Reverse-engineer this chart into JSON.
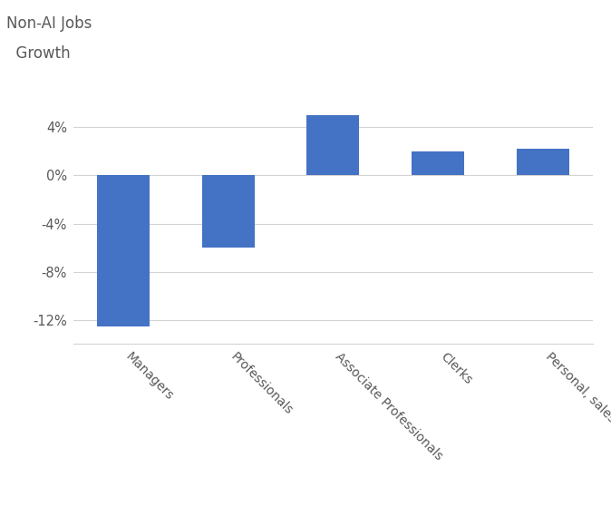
{
  "categories": [
    "Managers",
    "Professionals",
    "Associate Professionals",
    "Clerks",
    "Personal, sales, security"
  ],
  "values": [
    -12.5,
    -6.0,
    5.0,
    2.0,
    2.2
  ],
  "bar_color": "#4472C4",
  "ylabel_line1": "Non-AI Jobs",
  "ylabel_line2": "  Growth",
  "ylim": [
    -14,
    7
  ],
  "yticks": [
    -12,
    -8,
    -4,
    0,
    4
  ],
  "ytick_labels": [
    "-12%",
    "-8%",
    "-4%",
    "0%",
    "4%"
  ],
  "background_color": "#ffffff",
  "grid_color": "#d3d3d3",
  "bar_width": 0.5,
  "ylabel_fontsize": 12,
  "tick_fontsize": 10.5,
  "xtick_fontsize": 10
}
